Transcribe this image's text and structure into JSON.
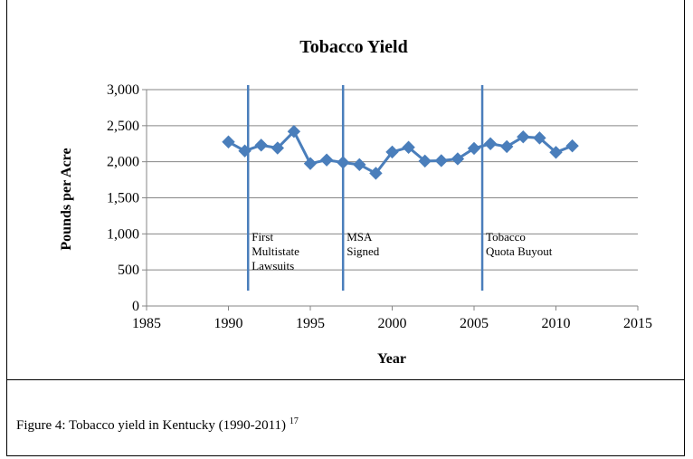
{
  "chart_data": {
    "type": "line",
    "title": "Tobacco Yield",
    "xlabel": "Year",
    "ylabel": "Pounds per Acre",
    "xlim": [
      1985,
      2015
    ],
    "ylim": [
      0,
      3000
    ],
    "x_ticks": [
      1985,
      1990,
      1995,
      2000,
      2005,
      2010,
      2015
    ],
    "y_ticks": [
      0,
      500,
      1000,
      1500,
      2000,
      2500,
      3000
    ],
    "y_tick_labels": [
      "0",
      "500",
      "1,000",
      "1,500",
      "2,000",
      "2,500",
      "3,000"
    ],
    "grid": "horizontal",
    "series_color": "#4a7ebb",
    "series": [
      {
        "x": [
          1990,
          1991,
          1992,
          1993,
          1994,
          1995,
          1996,
          1997,
          1998,
          1999,
          2000,
          2001,
          2002,
          2003,
          2004,
          2005,
          2006,
          2007,
          2008,
          2009,
          2010,
          2011
        ],
        "values": [
          2275,
          2150,
          2230,
          2190,
          2420,
          1975,
          2025,
          1990,
          1960,
          1840,
          2135,
          2200,
          2010,
          2015,
          2040,
          2185,
          2250,
          2210,
          2345,
          2330,
          2130,
          2220
        ]
      }
    ],
    "annotations": [
      {
        "x": 1991.2,
        "lines": [
          "First",
          "Multistate",
          "Lawsuits"
        ]
      },
      {
        "x": 1997,
        "lines": [
          "MSA",
          "Signed"
        ]
      },
      {
        "x": 2005.5,
        "lines": [
          "Tobacco",
          "Quota Buyout"
        ]
      }
    ]
  },
  "caption": {
    "text": "Figure 4: Tobacco yield in Kentucky (1990-2011) ",
    "footnote": "17"
  }
}
